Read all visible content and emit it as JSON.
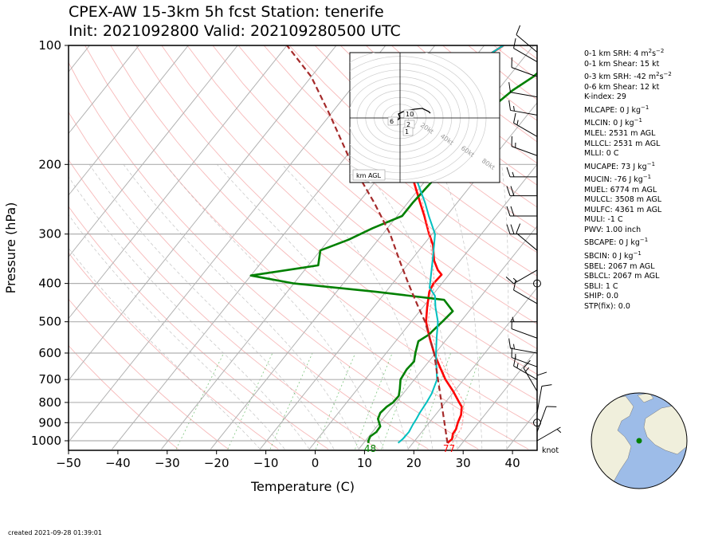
{
  "title": {
    "line1": "CPEX-AW 15-3km  5h fcst  Station: tenerife",
    "line2": "Init: 2021092800  Valid: 202109280500 UTC"
  },
  "chart_data": {
    "type": "line",
    "subtype": "skew-T log-P",
    "xlabel": "Temperature (C)",
    "ylabel": "Pressure (hPa)",
    "xlim": [
      -50,
      45
    ],
    "ylim": [
      1050,
      100
    ],
    "yscale": "log",
    "x_ticks": [
      -50,
      -40,
      -30,
      -20,
      -10,
      0,
      10,
      20,
      30,
      40
    ],
    "y_ticks": [
      100,
      200,
      300,
      400,
      500,
      600,
      700,
      800,
      900,
      1000
    ],
    "grid": true,
    "series": [
      {
        "key": "temperature",
        "color": "#ff0000",
        "points": [
          [
            1013,
            27
          ],
          [
            990,
            27.3
          ],
          [
            960,
            26.6
          ],
          [
            935,
            26.5
          ],
          [
            900,
            25.8
          ],
          [
            860,
            25.2
          ],
          [
            820,
            24
          ],
          [
            800,
            22.8
          ],
          [
            750,
            19.8
          ],
          [
            700,
            16.3
          ],
          [
            650,
            13.1
          ],
          [
            600,
            9.7
          ],
          [
            550,
            6.4
          ],
          [
            500,
            3.0
          ],
          [
            460,
            0.9
          ],
          [
            420,
            -1.2
          ],
          [
            400,
            -1.7
          ],
          [
            380,
            -1.5
          ],
          [
            370,
            -3
          ],
          [
            350,
            -5.3
          ],
          [
            320,
            -8
          ],
          [
            300,
            -10.6
          ],
          [
            270,
            -14.5
          ],
          [
            250,
            -17.5
          ],
          [
            220,
            -22.4
          ],
          [
            190,
            -26.4
          ],
          [
            170,
            -29
          ],
          [
            150,
            -30.8
          ],
          [
            130,
            -31.6
          ],
          [
            120,
            -31.3
          ],
          [
            110,
            -28.6
          ],
          [
            100,
            -26.1
          ]
        ]
      },
      {
        "key": "virtual_temperature",
        "color": "#ff9999",
        "points": [
          [
            1013,
            28
          ],
          [
            960,
            27.6
          ],
          [
            935,
            27.5
          ],
          [
            900,
            26.8
          ],
          [
            800,
            23.8
          ],
          [
            700,
            17.3
          ],
          [
            600,
            10.4
          ],
          [
            500,
            3.4
          ],
          [
            400,
            -1.5
          ],
          [
            300,
            -10.5
          ],
          [
            200,
            -25
          ],
          [
            100,
            -26
          ]
        ]
      },
      {
        "key": "dewpoint",
        "color": "#008000",
        "points": [
          [
            1013,
            11
          ],
          [
            1000,
            10.6
          ],
          [
            975,
            10.3
          ],
          [
            950,
            10.8
          ],
          [
            920,
            10.7
          ],
          [
            880,
            9
          ],
          [
            850,
            8.5
          ],
          [
            820,
            8.8
          ],
          [
            800,
            9.4
          ],
          [
            770,
            9.5
          ],
          [
            740,
            8.6
          ],
          [
            700,
            7.2
          ],
          [
            660,
            6.8
          ],
          [
            630,
            7
          ],
          [
            600,
            5.9
          ],
          [
            560,
            4.6
          ],
          [
            540,
            5.6
          ],
          [
            500,
            6.3
          ],
          [
            470,
            6.7
          ],
          [
            440,
            3.1
          ],
          [
            420,
            -12
          ],
          [
            400,
            -30
          ],
          [
            382,
            -40
          ],
          [
            360,
            -28
          ],
          [
            330,
            -30
          ],
          [
            310,
            -26
          ],
          [
            290,
            -23
          ],
          [
            270,
            -19
          ],
          [
            250,
            -19
          ],
          [
            220,
            -18.5
          ],
          [
            200,
            -18
          ],
          [
            180,
            -18.5
          ],
          [
            160,
            -20
          ],
          [
            150,
            -19
          ],
          [
            130,
            -17
          ],
          [
            120,
            -15
          ],
          [
            110,
            -14
          ],
          [
            100,
            -13
          ]
        ]
      },
      {
        "key": "wetbulb",
        "color": "#00c0c0",
        "points": [
          [
            1013,
            17
          ],
          [
            990,
            17.3
          ],
          [
            950,
            17.4
          ],
          [
            910,
            17
          ],
          [
            880,
            16.8
          ],
          [
            850,
            16.5
          ],
          [
            800,
            16.2
          ],
          [
            760,
            15.8
          ],
          [
            700,
            14.6
          ],
          [
            650,
            12.4
          ],
          [
            600,
            10.1
          ],
          [
            550,
            7.8
          ],
          [
            500,
            5.4
          ],
          [
            460,
            2.6
          ],
          [
            430,
            0.6
          ],
          [
            410,
            -1.8
          ],
          [
            390,
            -3
          ],
          [
            350,
            -5.6
          ],
          [
            320,
            -7.8
          ],
          [
            300,
            -9.4
          ],
          [
            270,
            -13.6
          ],
          [
            250,
            -16.5
          ],
          [
            220,
            -21.7
          ],
          [
            190,
            -26.7
          ],
          [
            170,
            -29.5
          ],
          [
            150,
            -31.3
          ],
          [
            130,
            -32
          ],
          [
            120,
            -31.5
          ],
          [
            110,
            -28.7
          ],
          [
            100,
            -26.1
          ]
        ]
      },
      {
        "key": "parcel",
        "color": "#a52a2a",
        "dashed": true,
        "points": [
          [
            1013,
            27
          ],
          [
            600,
            9.7
          ],
          [
            500,
            2.8
          ],
          [
            450,
            -1.8
          ],
          [
            400,
            -6.8
          ],
          [
            350,
            -12.3
          ],
          [
            300,
            -18.5
          ],
          [
            250,
            -26.8
          ],
          [
            200,
            -37.5
          ],
          [
            150,
            -50
          ],
          [
            120,
            -60
          ],
          [
            100,
            -70
          ]
        ]
      }
    ],
    "annotations": [
      {
        "text": "48",
        "temp": 11,
        "pressure": 1013,
        "color": "#008000"
      },
      {
        "text": "77",
        "temp": 27,
        "pressure": 1013,
        "color": "#ff0000"
      }
    ],
    "wind_unit_label": "knot",
    "winds": [
      {
        "p": 1000,
        "speed": 5,
        "dir": 60
      },
      {
        "p": 950,
        "speed": 10,
        "dir": 20
      },
      {
        "p": 900,
        "speed": 0,
        "dir": 0
      },
      {
        "p": 850,
        "speed": 10,
        "dir": 10
      },
      {
        "p": 800,
        "speed": 10,
        "dir": 0
      },
      {
        "p": 750,
        "speed": 15,
        "dir": 330
      },
      {
        "p": 700,
        "speed": 15,
        "dir": 300
      },
      {
        "p": 650,
        "speed": 15,
        "dir": 290
      },
      {
        "p": 600,
        "speed": 15,
        "dir": 280
      },
      {
        "p": 550,
        "speed": 10,
        "dir": 290
      },
      {
        "p": 500,
        "speed": 5,
        "dir": 270
      },
      {
        "p": 450,
        "speed": 10,
        "dir": 300
      },
      {
        "p": 400,
        "speed": 0,
        "dir": 0
      },
      {
        "p": 370,
        "speed": 15,
        "dir": 240
      },
      {
        "p": 330,
        "speed": 10,
        "dir": 310
      },
      {
        "p": 300,
        "speed": 20,
        "dir": 270
      },
      {
        "p": 270,
        "speed": 20,
        "dir": 270
      },
      {
        "p": 240,
        "speed": 20,
        "dir": 270
      },
      {
        "p": 215,
        "speed": 15,
        "dir": 270
      },
      {
        "p": 190,
        "speed": 15,
        "dir": 290
      },
      {
        "p": 170,
        "speed": 15,
        "dir": 300
      },
      {
        "p": 150,
        "speed": 15,
        "dir": 280
      },
      {
        "p": 135,
        "speed": 10,
        "dir": 280
      },
      {
        "p": 120,
        "speed": 10,
        "dir": 290
      },
      {
        "p": 110,
        "speed": 10,
        "dir": 300
      },
      {
        "p": 104,
        "speed": 10,
        "dir": 310
      }
    ],
    "hodograph": {
      "rings": [
        "20kt",
        "40kt",
        "60kt",
        "80kt"
      ],
      "height_labels": [
        "10",
        "6",
        "2",
        "1"
      ],
      "label": "km AGL",
      "color": "#000000"
    }
  },
  "indices": [
    {
      "text": "0-1 km SRH: 4 m",
      "sup": "2",
      "text2": "s",
      "sup2": "−2"
    },
    {
      "text": "0-1 km Shear: 15 kt"
    },
    {
      "text": "0-3 km SRH: -42 m",
      "sup": "2",
      "text2": "s",
      "sup2": "−2"
    },
    {
      "text": "0-6 km Shear: 12 kt"
    },
    {
      "text": "K-index: 29"
    },
    {
      "text": "MLCAPE: 0 J kg",
      "sup": "−1"
    },
    {
      "text": "MLCIN: 0 J kg",
      "sup": "−1"
    },
    {
      "text": "MLEL: 2531 m AGL"
    },
    {
      "text": "MLLCL: 2531 m AGL"
    },
    {
      "text": "MLLI: 0 C"
    },
    {
      "text": "MUCAPE: 73 J kg",
      "sup": "−1"
    },
    {
      "text": "MUCIN: -76 J kg",
      "sup": "−1"
    },
    {
      "text": "MUEL: 6774 m AGL"
    },
    {
      "text": "MULCL: 3508 m AGL"
    },
    {
      "text": "MULFC: 4361 m AGL"
    },
    {
      "text": "MULI: -1 C"
    },
    {
      "text": "PWV: 1.00 inch"
    },
    {
      "text": "SBCAPE: 0 J kg",
      "sup": "−1"
    },
    {
      "text": "SBCIN: 0 J kg",
      "sup": "−1"
    },
    {
      "text": "SBEL: 2067 m AGL"
    },
    {
      "text": "SBLCL: 2067 m AGL"
    },
    {
      "text": "SBLI: 1 C"
    },
    {
      "text": "SHIP: 0.0"
    },
    {
      "text": "STP(fix): 0.0"
    }
  ],
  "created": "created 2021-09-28 01:39:01",
  "globe": {
    "ocean": "#9dbce8",
    "land": "#f0efdc",
    "marker": "#008000"
  }
}
